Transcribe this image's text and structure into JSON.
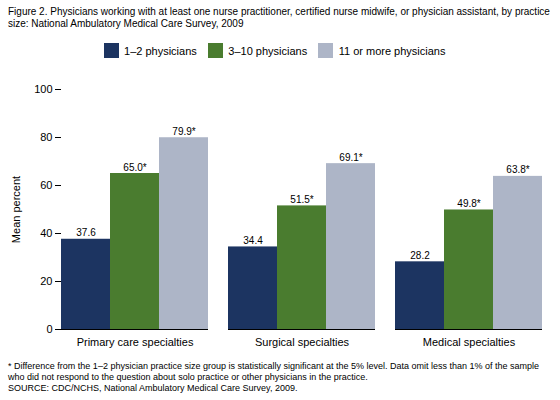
{
  "chart_data": {
    "type": "bar",
    "title": "Figure 2. Physicians working with at least one nurse practitioner, certified nurse midwife, or physician assistant, by practice size: National Ambulatory Medical Care Survey, 2009",
    "categories": [
      "Primary care specialties",
      "Surgical specialties",
      "Medical specialties"
    ],
    "series": [
      {
        "name": "1–2 physicians",
        "color": "#1c3461",
        "values": [
          37.6,
          34.4,
          28.2
        ],
        "value_labels": [
          "37.6",
          "34.4",
          "28.2"
        ]
      },
      {
        "name": "3–10 physicians",
        "color": "#4a7c2f",
        "values": [
          65.0,
          51.5,
          49.8
        ],
        "value_labels": [
          "65.0*",
          "51.5*",
          "49.8*"
        ]
      },
      {
        "name": "11 or more physicians",
        "color": "#adb5c7",
        "values": [
          79.9,
          69.1,
          63.8
        ],
        "value_labels": [
          "79.9*",
          "69.1*",
          "63.8*"
        ]
      }
    ],
    "ylabel": "Mean percent",
    "ylim": [
      0,
      100
    ],
    "yticks": [
      0,
      20,
      40,
      60,
      80,
      100
    ],
    "grid": false,
    "legend": "top",
    "data_labels": true,
    "footnotes": [
      "* Difference from the 1–2 physician practice size group is statistically significant at the 5% level. Data omit less than 1% of the sample who did not respond to the question about solo practice or other physicians in the practice.",
      "SOURCE: CDC/NCHS, National Ambulatory Medical Care Survey, 2009."
    ]
  }
}
